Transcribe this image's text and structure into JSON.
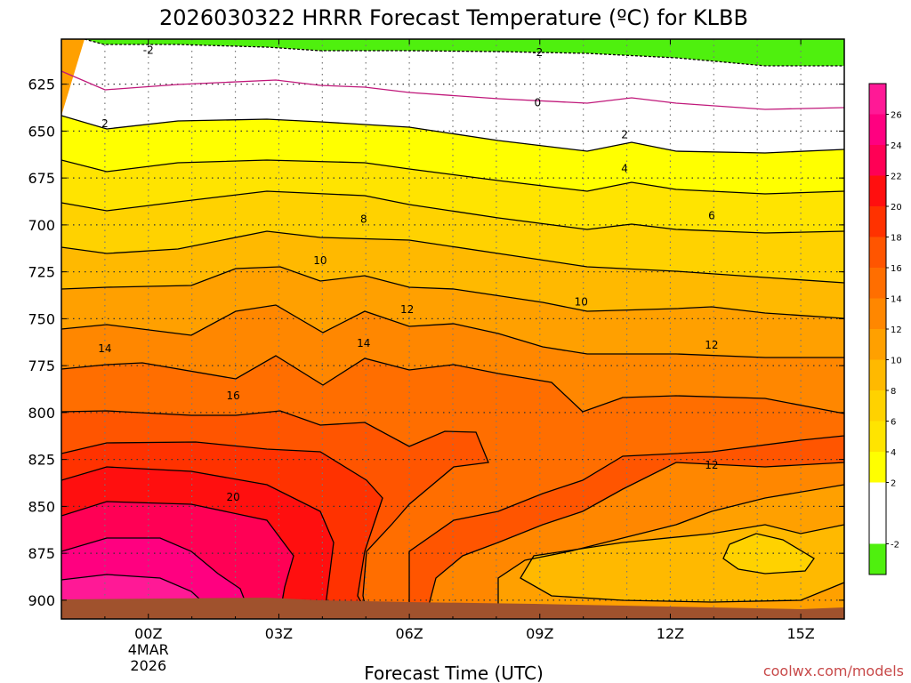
{
  "chart_data": {
    "type": "area",
    "title": "2026030322 HRRR Forecast Temperature (ºC) for KLBB",
    "xlabel": "Forecast Time (UTC)",
    "ylabel": "",
    "x_ticks": [
      {
        "hour": 0,
        "label": "00Z",
        "sub1": "4MAR",
        "sub2": "2026"
      },
      {
        "hour": 3,
        "label": "03Z"
      },
      {
        "hour": 6,
        "label": "06Z"
      },
      {
        "hour": 9,
        "label": "09Z"
      },
      {
        "hour": 12,
        "label": "12Z"
      },
      {
        "hour": 15,
        "label": "15Z"
      }
    ],
    "xlim": [
      -2,
      16
    ],
    "y_ticks": [
      625,
      650,
      675,
      700,
      725,
      750,
      775,
      800,
      825,
      850,
      875,
      900
    ],
    "ylim": [
      601,
      910
    ],
    "y_scale": "pressure (hPa), increasing downward",
    "grid": true,
    "colorbar": {
      "position": "right",
      "levels": [
        -4,
        -2,
        2,
        4,
        6,
        8,
        10,
        12,
        14,
        16,
        18,
        20,
        22,
        24,
        26,
        28
      ],
      "labels": [
        "-2",
        "2",
        "4",
        "6",
        "8",
        "10",
        "12",
        "14",
        "16",
        "18",
        "20",
        "22",
        "24",
        "26"
      ],
      "colors": [
        "#4ff00e",
        "#ffffff",
        "#ffff00",
        "#ffe400",
        "#ffd200",
        "#ffb900",
        "#ffa000",
        "#ff8700",
        "#ff6e00",
        "#ff5500",
        "#ff3200",
        "#ff0f0f",
        "#ff0055",
        "#ff0080",
        "#ff1996"
      ]
    },
    "ground_color": "#a0522d",
    "contour_labels": [
      {
        "text": "-2",
        "hour": 0.0,
        "pressure": 607
      },
      {
        "text": "-2",
        "hour": 8.95,
        "pressure": 608
      },
      {
        "text": "0",
        "hour": 8.95,
        "pressure": 635
      },
      {
        "text": "2",
        "hour": -1.0,
        "pressure": 646
      },
      {
        "text": "2",
        "hour": 10.95,
        "pressure": 652
      },
      {
        "text": "4",
        "hour": 10.95,
        "pressure": 670
      },
      {
        "text": "6",
        "hour": 12.95,
        "pressure": 695
      },
      {
        "text": "8",
        "hour": 4.95,
        "pressure": 697
      },
      {
        "text": "10",
        "hour": 3.95,
        "pressure": 719
      },
      {
        "text": "10",
        "hour": 9.95,
        "pressure": 741
      },
      {
        "text": "12",
        "hour": 5.95,
        "pressure": 745
      },
      {
        "text": "12",
        "hour": 12.95,
        "pressure": 764
      },
      {
        "text": "12",
        "hour": 12.95,
        "pressure": 828
      },
      {
        "text": "14",
        "hour": -1.0,
        "pressure": 766
      },
      {
        "text": "14",
        "hour": 4.95,
        "pressure": 763
      },
      {
        "text": "16",
        "hour": 1.95,
        "pressure": 791
      },
      {
        "text": "20",
        "hour": 1.95,
        "pressure": 845
      }
    ],
    "credit": "coolwx.com/models"
  }
}
